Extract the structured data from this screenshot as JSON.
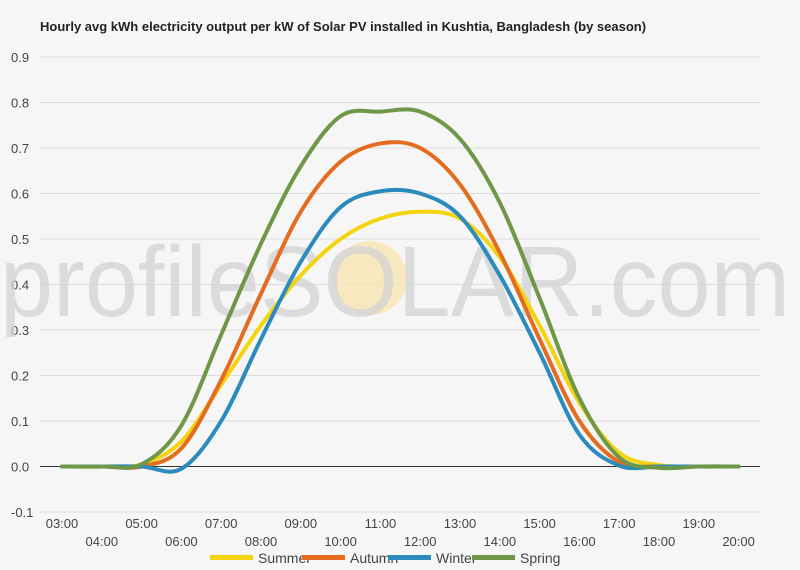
{
  "chart_data": {
    "type": "line",
    "title": "Hourly avg kWh electricity output per kW of Solar PV installed in Kushtia, Bangladesh (by season)",
    "watermark": "profileSOLAR.com",
    "x": [
      "03:00",
      "04:00",
      "05:00",
      "06:00",
      "07:00",
      "08:00",
      "09:00",
      "10:00",
      "11:00",
      "12:00",
      "13:00",
      "14:00",
      "15:00",
      "16:00",
      "17:00",
      "18:00",
      "19:00",
      "20:00"
    ],
    "y_ticks": [
      "-0.1",
      "0.0",
      "0.1",
      "0.2",
      "0.3",
      "0.4",
      "0.5",
      "0.6",
      "0.7",
      "0.8",
      "0.9"
    ],
    "ylim": [
      -0.1,
      0.9
    ],
    "grid": true,
    "legend_position": "bottom",
    "series": [
      {
        "name": "Summer",
        "color": "#f4d40f",
        "values": [
          0,
          0,
          0.005,
          0.055,
          0.18,
          0.31,
          0.42,
          0.5,
          0.545,
          0.56,
          0.545,
          0.46,
          0.31,
          0.14,
          0.03,
          0.003,
          0,
          0
        ]
      },
      {
        "name": "Autumn",
        "color": "#e36c1e",
        "values": [
          0,
          0,
          0,
          0.04,
          0.19,
          0.38,
          0.56,
          0.67,
          0.71,
          0.7,
          0.62,
          0.47,
          0.28,
          0.1,
          0.01,
          0,
          0,
          0
        ]
      },
      {
        "name": "Winter",
        "color": "#2b8bbd",
        "values": [
          0,
          0,
          0,
          -0.005,
          0.1,
          0.28,
          0.45,
          0.57,
          0.605,
          0.6,
          0.55,
          0.42,
          0.25,
          0.07,
          0.002,
          0,
          0,
          0
        ]
      },
      {
        "name": "Spring",
        "color": "#6e9847",
        "values": [
          0,
          0,
          0.005,
          0.09,
          0.29,
          0.49,
          0.66,
          0.77,
          0.78,
          0.78,
          0.72,
          0.58,
          0.37,
          0.15,
          0.02,
          -0.003,
          0,
          0
        ]
      }
    ]
  }
}
